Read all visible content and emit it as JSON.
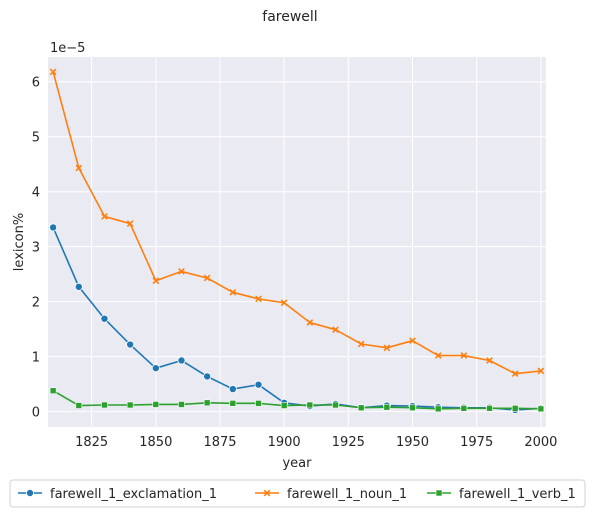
{
  "chart_data": {
    "type": "line",
    "title": "farewell",
    "xlabel": "year",
    "ylabel": "lexicon%",
    "y_offset_label": "1e−5",
    "xlim": [
      1808,
      2002
    ],
    "ylim": [
      -0.28,
      6.45
    ],
    "x_ticks": [
      1825,
      1850,
      1875,
      1900,
      1925,
      1950,
      1975,
      2000
    ],
    "y_ticks": [
      0,
      1,
      2,
      3,
      4,
      5,
      6
    ],
    "grid": true,
    "legend_position": "bottom",
    "x": [
      1810,
      1820,
      1830,
      1840,
      1850,
      1860,
      1870,
      1880,
      1890,
      1900,
      1910,
      1920,
      1930,
      1940,
      1950,
      1960,
      1970,
      1980,
      1990,
      2000
    ],
    "series": [
      {
        "name": "farewell_1_exclamation_1",
        "color": "#1f77b4",
        "marker": "circle",
        "values": [
          3.35,
          2.27,
          1.69,
          1.22,
          0.79,
          0.93,
          0.64,
          0.41,
          0.49,
          0.16,
          0.1,
          0.14,
          0.07,
          0.11,
          0.1,
          0.08,
          0.07,
          0.07,
          0.03,
          0.06
        ]
      },
      {
        "name": "farewell_1_noun_1",
        "color": "#ff7f0e",
        "marker": "x",
        "values": [
          6.18,
          4.43,
          3.55,
          3.42,
          2.38,
          2.55,
          2.43,
          2.17,
          2.05,
          1.98,
          1.62,
          1.49,
          1.23,
          1.16,
          1.29,
          1.02,
          1.02,
          0.93,
          0.69,
          0.74
        ]
      },
      {
        "name": "farewell_1_verb_1",
        "color": "#2ca02c",
        "marker": "square",
        "values": [
          0.38,
          0.11,
          0.12,
          0.12,
          0.13,
          0.13,
          0.16,
          0.15,
          0.15,
          0.11,
          0.12,
          0.12,
          0.07,
          0.08,
          0.07,
          0.05,
          0.06,
          0.06,
          0.06,
          0.05
        ]
      }
    ]
  }
}
